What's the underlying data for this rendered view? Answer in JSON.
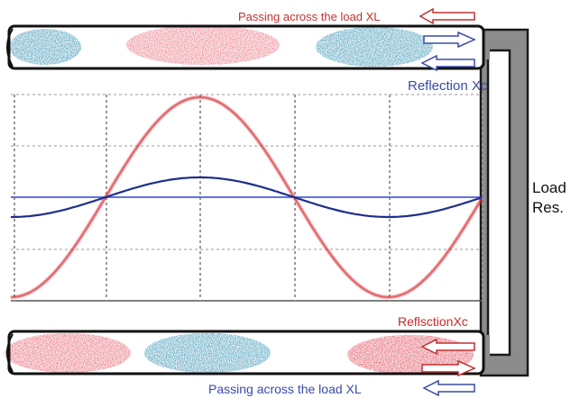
{
  "labels": {
    "top_passing": "Passing across the load  XL",
    "reflection_top": "Reflection Xc",
    "reflection_bottom": "ReflsctionXc",
    "bottom_passing": "Passing across the load  XL",
    "load_line1": "Load",
    "load_line2": "Res."
  },
  "colors": {
    "forward_wave": "#d9323a",
    "reflected_wave": "#1f2f8a",
    "axis_line": "#4a5ee0",
    "passing_label": "#c03030",
    "reflection_label_top": "#3a4aa8",
    "reflection_label_bottom": "#c82828",
    "bottom_label": "#3a4aa8",
    "load_bar": "#8c8c8c",
    "grid": "#9a9a9a",
    "cable_blue": "#3d96b5",
    "cable_red": "#e04b5a"
  },
  "icons": [
    "arrow-left-icon",
    "arrow-right-icon"
  ]
}
